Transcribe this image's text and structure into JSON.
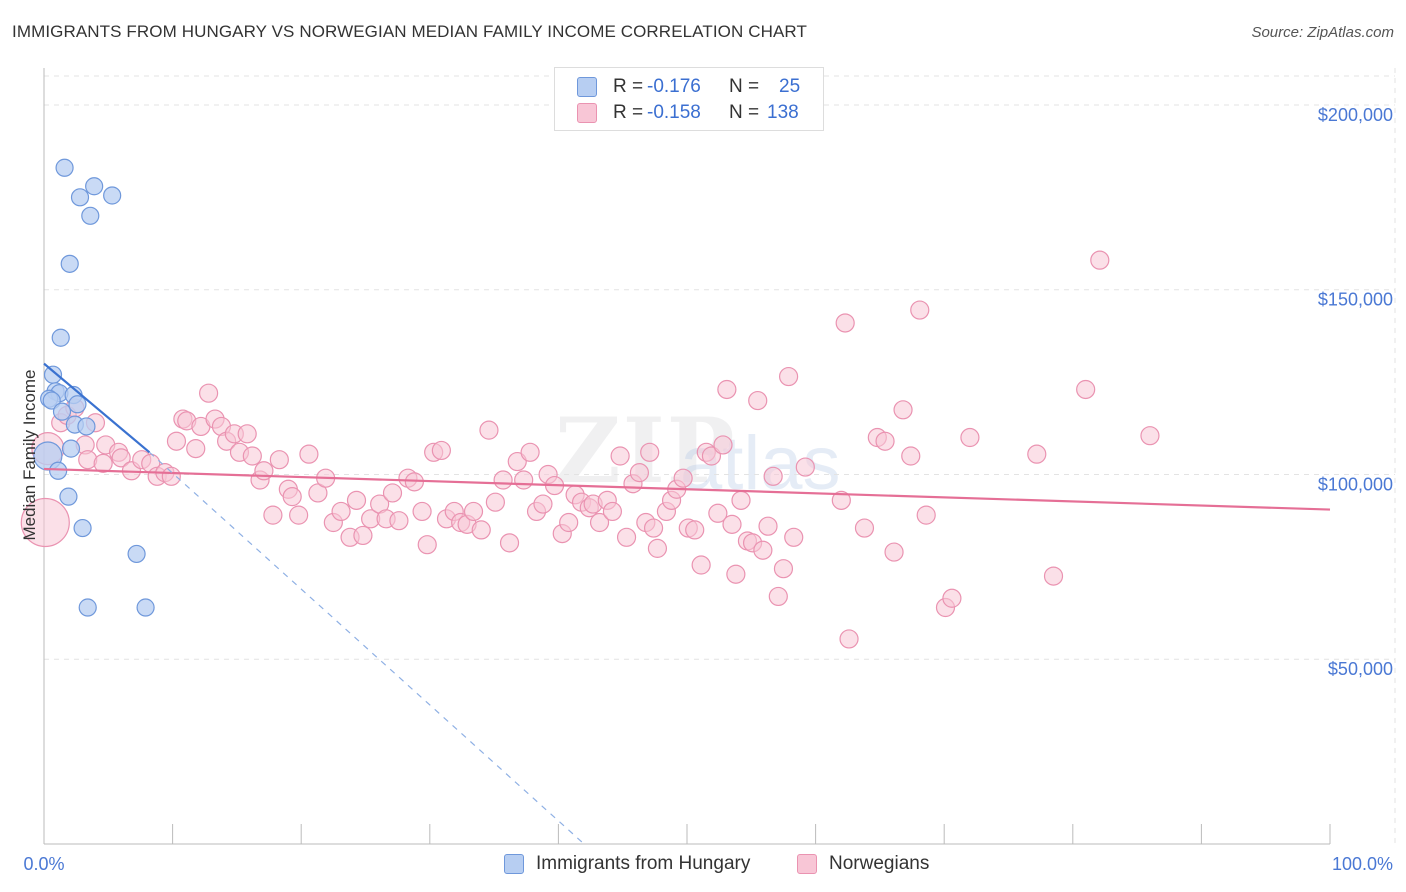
{
  "title": "IMMIGRANTS FROM HUNGARY VS NORWEGIAN MEDIAN FAMILY INCOME CORRELATION CHART",
  "source": "Source: ZipAtlas.com",
  "watermark": {
    "part1": "ZIP",
    "part2": "atlas"
  },
  "legend_top": {
    "rows": [
      {
        "r_label": "R =",
        "r_value": "-0.176",
        "n_label": "N =",
        "n_value": "25"
      },
      {
        "r_label": "R =",
        "r_value": "-0.158",
        "n_label": "N =",
        "n_value": "138"
      }
    ]
  },
  "legend_bottom": {
    "series1": "Immigrants from Hungary",
    "series2": "Norwegians"
  },
  "colors": {
    "blue_fill": "#b7cef2",
    "blue_stroke": "#6f98db",
    "blue_line": "#3a72d0",
    "pink_fill": "#f8c6d6",
    "pink_stroke": "#ea93b1",
    "pink_line": "#e56f96",
    "grid": "#e3e3e3",
    "axis_text": "#4a78d4"
  },
  "chart_data": {
    "type": "scatter",
    "title": "IMMIGRANTS FROM HUNGARY VS NORWEGIAN MEDIAN FAMILY INCOME CORRELATION CHART",
    "xlabel": "",
    "ylabel": "Median Family Income",
    "xlim": [
      0,
      100
    ],
    "ylim": [
      0,
      210000
    ],
    "x_tick_labels": [
      "0.0%",
      "100.0%"
    ],
    "y_ticks": [
      {
        "value": 50000,
        "label": "$50,000"
      },
      {
        "value": 100000,
        "label": "$100,000"
      },
      {
        "value": 150000,
        "label": "$150,000"
      },
      {
        "value": 200000,
        "label": "$200,000"
      }
    ],
    "series": [
      {
        "name": "Immigrants from Hungary",
        "points": [
          [
            1.6,
            183000
          ],
          [
            3.9,
            178000
          ],
          [
            2.8,
            175000
          ],
          [
            5.3,
            175500
          ],
          [
            3.6,
            170000
          ],
          [
            2.0,
            157000
          ],
          [
            1.3,
            137000
          ],
          [
            0.7,
            127000
          ],
          [
            0.9,
            122500
          ],
          [
            1.2,
            122000
          ],
          [
            2.3,
            121500
          ],
          [
            0.4,
            120500
          ],
          [
            0.6,
            120000
          ],
          [
            2.6,
            119000
          ],
          [
            1.4,
            117000
          ],
          [
            2.4,
            113500
          ],
          [
            3.3,
            113000
          ],
          [
            2.1,
            107000
          ],
          [
            0.3,
            105000
          ],
          [
            1.1,
            101000
          ],
          [
            1.9,
            94000
          ],
          [
            3.0,
            85500
          ],
          [
            7.2,
            78500
          ],
          [
            3.4,
            64000
          ],
          [
            7.9,
            64000
          ]
        ],
        "trend": {
          "x0": 0,
          "y0": 130000,
          "x1": 8.2,
          "y1": 106000,
          "dash_to_x": 42,
          "dash_to_y": 0
        }
      },
      {
        "name": "Norwegians",
        "points": [
          [
            0.1,
            87000
          ],
          [
            0.3,
            107000
          ],
          [
            1.3,
            114000
          ],
          [
            1.8,
            116000
          ],
          [
            2.4,
            118000
          ],
          [
            4.0,
            114000
          ],
          [
            3.2,
            108000
          ],
          [
            3.4,
            104000
          ],
          [
            4.8,
            108000
          ],
          [
            4.6,
            103000
          ],
          [
            5.8,
            106000
          ],
          [
            6.0,
            104500
          ],
          [
            6.8,
            101000
          ],
          [
            7.6,
            104000
          ],
          [
            8.3,
            103000
          ],
          [
            8.8,
            99500
          ],
          [
            9.4,
            100500
          ],
          [
            9.9,
            99500
          ],
          [
            10.3,
            109000
          ],
          [
            10.8,
            115000
          ],
          [
            11.1,
            114500
          ],
          [
            11.8,
            107000
          ],
          [
            12.2,
            113000
          ],
          [
            12.8,
            122000
          ],
          [
            13.3,
            115000
          ],
          [
            13.8,
            113000
          ],
          [
            14.2,
            109000
          ],
          [
            14.8,
            111000
          ],
          [
            15.2,
            106000
          ],
          [
            15.8,
            111000
          ],
          [
            16.2,
            105000
          ],
          [
            16.8,
            98500
          ],
          [
            17.1,
            101000
          ],
          [
            17.8,
            89000
          ],
          [
            18.3,
            104000
          ],
          [
            19.0,
            96000
          ],
          [
            19.3,
            94000
          ],
          [
            19.8,
            89000
          ],
          [
            20.6,
            105500
          ],
          [
            21.3,
            95000
          ],
          [
            21.9,
            99000
          ],
          [
            22.5,
            87000
          ],
          [
            23.1,
            90000
          ],
          [
            23.8,
            83000
          ],
          [
            24.3,
            93000
          ],
          [
            24.8,
            83500
          ],
          [
            25.4,
            88000
          ],
          [
            26.1,
            92000
          ],
          [
            26.6,
            88000
          ],
          [
            27.1,
            95000
          ],
          [
            27.6,
            87500
          ],
          [
            28.3,
            99000
          ],
          [
            28.8,
            98000
          ],
          [
            29.4,
            90000
          ],
          [
            29.8,
            81000
          ],
          [
            30.3,
            106000
          ],
          [
            30.9,
            106500
          ],
          [
            31.3,
            88000
          ],
          [
            31.9,
            90000
          ],
          [
            32.4,
            87000
          ],
          [
            32.9,
            86500
          ],
          [
            33.4,
            90000
          ],
          [
            34.0,
            85000
          ],
          [
            34.6,
            112000
          ],
          [
            35.1,
            92500
          ],
          [
            35.7,
            98500
          ],
          [
            36.2,
            81500
          ],
          [
            36.8,
            103500
          ],
          [
            37.3,
            98500
          ],
          [
            37.8,
            106000
          ],
          [
            38.3,
            90000
          ],
          [
            38.8,
            92000
          ],
          [
            39.2,
            100000
          ],
          [
            39.7,
            97000
          ],
          [
            40.3,
            84000
          ],
          [
            40.8,
            87000
          ],
          [
            41.3,
            94500
          ],
          [
            41.8,
            92500
          ],
          [
            42.4,
            91000
          ],
          [
            42.7,
            92000
          ],
          [
            43.2,
            87000
          ],
          [
            43.8,
            93000
          ],
          [
            44.2,
            90000
          ],
          [
            44.8,
            105000
          ],
          [
            45.3,
            83000
          ],
          [
            45.8,
            97500
          ],
          [
            46.3,
            100500
          ],
          [
            46.8,
            87000
          ],
          [
            47.1,
            106000
          ],
          [
            47.4,
            85500
          ],
          [
            47.7,
            80000
          ],
          [
            48.4,
            90000
          ],
          [
            48.8,
            93000
          ],
          [
            49.2,
            96000
          ],
          [
            49.7,
            99000
          ],
          [
            50.1,
            85500
          ],
          [
            50.6,
            85000
          ],
          [
            51.1,
            75500
          ],
          [
            51.5,
            106000
          ],
          [
            51.9,
            105000
          ],
          [
            52.4,
            89500
          ],
          [
            52.8,
            108000
          ],
          [
            53.1,
            123000
          ],
          [
            53.5,
            86500
          ],
          [
            53.8,
            73000
          ],
          [
            54.2,
            93000
          ],
          [
            54.7,
            82000
          ],
          [
            55.1,
            81500
          ],
          [
            55.5,
            120000
          ],
          [
            55.9,
            79500
          ],
          [
            56.3,
            86000
          ],
          [
            56.7,
            99500
          ],
          [
            57.1,
            67000
          ],
          [
            57.5,
            74500
          ],
          [
            57.9,
            126500
          ],
          [
            58.3,
            83000
          ],
          [
            59.2,
            102000
          ],
          [
            62.0,
            93000
          ],
          [
            62.3,
            141000
          ],
          [
            62.6,
            55500
          ],
          [
            63.8,
            85500
          ],
          [
            64.8,
            110000
          ],
          [
            65.4,
            109000
          ],
          [
            66.1,
            79000
          ],
          [
            66.8,
            117500
          ],
          [
            67.4,
            105000
          ],
          [
            68.1,
            144500
          ],
          [
            68.6,
            89000
          ],
          [
            70.1,
            64000
          ],
          [
            70.6,
            66500
          ],
          [
            72.0,
            110000
          ],
          [
            77.2,
            105500
          ],
          [
            78.5,
            72500
          ],
          [
            81.0,
            123000
          ],
          [
            82.1,
            158000
          ],
          [
            86.0,
            110500
          ]
        ],
        "trend": {
          "x0": 0,
          "y0": 101500,
          "x1": 100,
          "y1": 90500
        }
      }
    ]
  }
}
